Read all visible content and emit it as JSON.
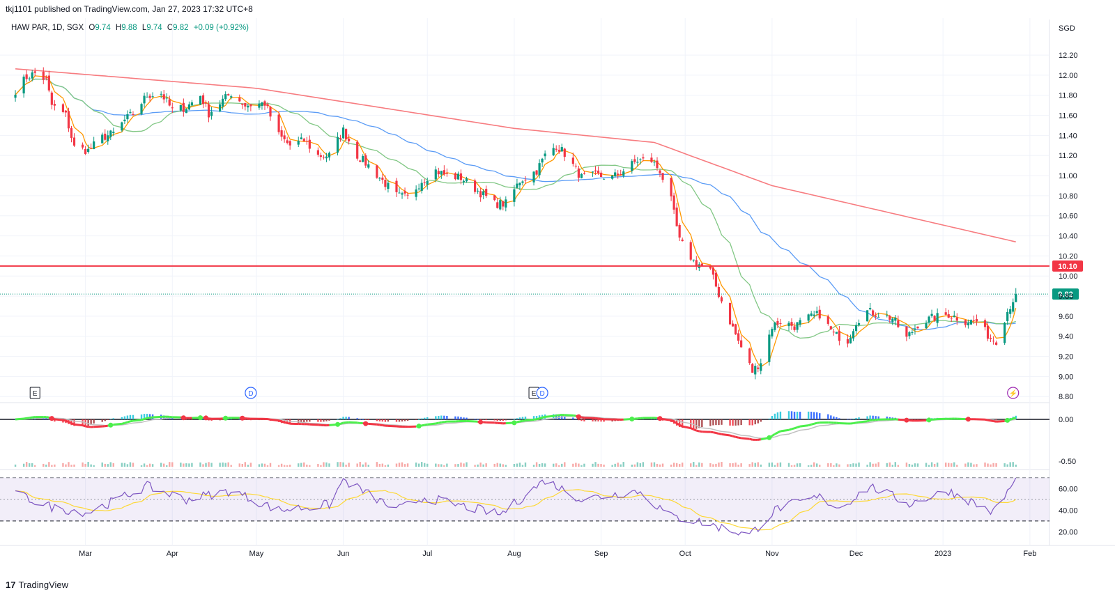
{
  "header": {
    "published": "tkj1101 published on TradingView.com, Jan 27, 2023 17:32 UTC+8",
    "symbol": "HAW PAR, 1D, SGX",
    "o_label": "O",
    "o_value": "9.74",
    "h_label": "H",
    "h_value": "9.88",
    "l_label": "L",
    "l_value": "9.74",
    "c_label": "C",
    "c_value": "9.82",
    "change": "+0.09 (+0.92%)"
  },
  "footer": {
    "logo_mark": "17",
    "brand": "TradingView"
  },
  "chart_data": {
    "type": "candlestick",
    "currency": "SGD",
    "price_axis": {
      "ticks": [
        "12.20",
        "12.00",
        "11.80",
        "11.60",
        "11.40",
        "11.20",
        "11.00",
        "10.80",
        "10.60",
        "10.40",
        "10.20",
        "10.00",
        "9.80",
        "9.60",
        "9.40",
        "9.20",
        "9.00",
        "8.80"
      ],
      "range": [
        8.76,
        12.36
      ]
    },
    "x_labels": [
      "Mar",
      "Apr",
      "May",
      "Jun",
      "Jul",
      "Aug",
      "Sep",
      "Oct",
      "Nov",
      "Dec",
      "2023",
      "Feb"
    ],
    "horizontal_line": {
      "value": 10.1,
      "label": "10.10",
      "color": "#f23645"
    },
    "last_price": {
      "value": 9.82,
      "label": "9.82",
      "color": "#089981"
    },
    "event_markers": [
      {
        "type": "E",
        "date": "2022-02-11"
      },
      {
        "type": "D",
        "date": "2022-04-29"
      },
      {
        "type": "E",
        "date": "2022-08-08"
      },
      {
        "type": "D",
        "date": "2022-08-11"
      },
      {
        "type": "⚡",
        "date": "2023-01-26"
      }
    ],
    "colors": {
      "up": "#089981",
      "down": "#f23645",
      "ma_fast": "#ff9800",
      "ma_mid": "#81c784",
      "ma_slow": "#5b9cf6",
      "ma_long": "#f77c80",
      "rsi": "#7e57c2",
      "rsi_ma": "#fdd835"
    },
    "waypoints": [
      [
        "2022-02-04",
        11.85
      ],
      [
        "2022-02-08",
        11.98
      ],
      [
        "2022-02-11",
        12.02
      ],
      [
        "2022-02-15",
        11.95
      ],
      [
        "2022-02-17",
        11.7
      ],
      [
        "2022-02-22",
        11.6
      ],
      [
        "2022-02-25",
        11.28
      ],
      [
        "2022-03-02",
        11.25
      ],
      [
        "2022-03-07",
        11.38
      ],
      [
        "2022-03-11",
        11.42
      ],
      [
        "2022-03-15",
        11.55
      ],
      [
        "2022-03-18",
        11.62
      ],
      [
        "2022-03-23",
        11.8
      ],
      [
        "2022-03-28",
        11.82
      ],
      [
        "2022-04-01",
        11.65
      ],
      [
        "2022-04-06",
        11.68
      ],
      [
        "2022-04-11",
        11.8
      ],
      [
        "2022-04-14",
        11.62
      ],
      [
        "2022-04-19",
        11.75
      ],
      [
        "2022-04-22",
        11.82
      ],
      [
        "2022-04-27",
        11.7
      ],
      [
        "2022-05-04",
        11.72
      ],
      [
        "2022-05-09",
        11.4
      ],
      [
        "2022-05-13",
        11.3
      ],
      [
        "2022-05-18",
        11.35
      ],
      [
        "2022-05-23",
        11.2
      ],
      [
        "2022-05-27",
        11.2
      ],
      [
        "2022-06-01",
        11.45
      ],
      [
        "2022-06-06",
        11.2
      ],
      [
        "2022-06-10",
        11.1
      ],
      [
        "2022-06-15",
        10.95
      ],
      [
        "2022-06-20",
        10.8
      ],
      [
        "2022-06-24",
        10.78
      ],
      [
        "2022-06-29",
        10.95
      ],
      [
        "2022-07-04",
        11.05
      ],
      [
        "2022-07-08",
        11.0
      ],
      [
        "2022-07-13",
        10.98
      ],
      [
        "2022-07-19",
        10.85
      ],
      [
        "2022-07-25",
        10.72
      ],
      [
        "2022-07-29",
        10.72
      ],
      [
        "2022-08-03",
        10.95
      ],
      [
        "2022-08-09",
        11.05
      ],
      [
        "2022-08-12",
        11.2
      ],
      [
        "2022-08-16",
        11.3
      ],
      [
        "2022-08-19",
        11.22
      ],
      [
        "2022-08-25",
        10.98
      ],
      [
        "2022-08-30",
        11.0
      ],
      [
        "2022-09-05",
        10.98
      ],
      [
        "2022-09-09",
        11.05
      ],
      [
        "2022-09-14",
        11.15
      ],
      [
        "2022-09-19",
        11.15
      ],
      [
        "2022-09-22",
        11.05
      ],
      [
        "2022-09-26",
        10.75
      ],
      [
        "2022-09-29",
        10.35
      ],
      [
        "2022-10-04",
        10.15
      ],
      [
        "2022-10-10",
        10.05
      ],
      [
        "2022-10-13",
        9.82
      ],
      [
        "2022-10-17",
        9.55
      ],
      [
        "2022-10-20",
        9.35
      ],
      [
        "2022-10-25",
        9.05
      ],
      [
        "2022-10-28",
        9.15
      ],
      [
        "2022-11-01",
        9.5
      ],
      [
        "2022-11-04",
        9.55
      ],
      [
        "2022-11-09",
        9.5
      ],
      [
        "2022-11-14",
        9.58
      ],
      [
        "2022-11-18",
        9.62
      ],
      [
        "2022-11-23",
        9.42
      ],
      [
        "2022-11-28",
        9.36
      ],
      [
        "2022-12-01",
        9.55
      ],
      [
        "2022-12-05",
        9.65
      ],
      [
        "2022-12-09",
        9.62
      ],
      [
        "2022-12-14",
        9.58
      ],
      [
        "2022-12-19",
        9.38
      ],
      [
        "2022-12-23",
        9.52
      ],
      [
        "2022-12-28",
        9.58
      ],
      [
        "2023-01-03",
        9.62
      ],
      [
        "2023-01-09",
        9.55
      ],
      [
        "2023-01-13",
        9.55
      ],
      [
        "2023-01-18",
        9.38
      ],
      [
        "2023-01-20",
        9.36
      ],
      [
        "2023-01-24",
        9.65
      ],
      [
        "2023-01-27",
        9.82
      ]
    ],
    "moving_averages_visible_end": {
      "ma_fast": 9.55,
      "ma_mid": 9.6,
      "ma_slow": 9.58,
      "ma_long": 10.34
    },
    "macd_axis": {
      "ticks": [
        "0.00",
        "-0.50"
      ]
    },
    "rsi_axis": {
      "ticks": [
        "60.00",
        "40.00",
        "20.00"
      ],
      "bands": [
        70,
        50,
        30
      ]
    },
    "rsi_waypoints": [
      [
        "2022-02-04",
        55
      ],
      [
        "2022-02-18",
        42
      ],
      [
        "2022-03-02",
        38
      ],
      [
        "2022-03-23",
        62
      ],
      [
        "2022-04-06",
        50
      ],
      [
        "2022-04-22",
        58
      ],
      [
        "2022-05-09",
        40
      ],
      [
        "2022-05-27",
        45
      ],
      [
        "2022-06-01",
        68
      ],
      [
        "2022-06-20",
        40
      ],
      [
        "2022-06-30",
        52
      ],
      [
        "2022-07-27",
        36
      ],
      [
        "2022-08-12",
        68
      ],
      [
        "2022-08-25",
        50
      ],
      [
        "2022-09-14",
        58
      ],
      [
        "2022-09-26",
        34
      ],
      [
        "2022-10-05",
        30
      ],
      [
        "2022-10-24",
        17
      ],
      [
        "2022-11-03",
        42
      ],
      [
        "2022-11-18",
        52
      ],
      [
        "2022-11-25",
        42
      ],
      [
        "2022-12-06",
        62
      ],
      [
        "2022-12-20",
        46
      ],
      [
        "2023-01-03",
        58
      ],
      [
        "2023-01-19",
        38
      ],
      [
        "2023-01-27",
        68
      ]
    ]
  }
}
